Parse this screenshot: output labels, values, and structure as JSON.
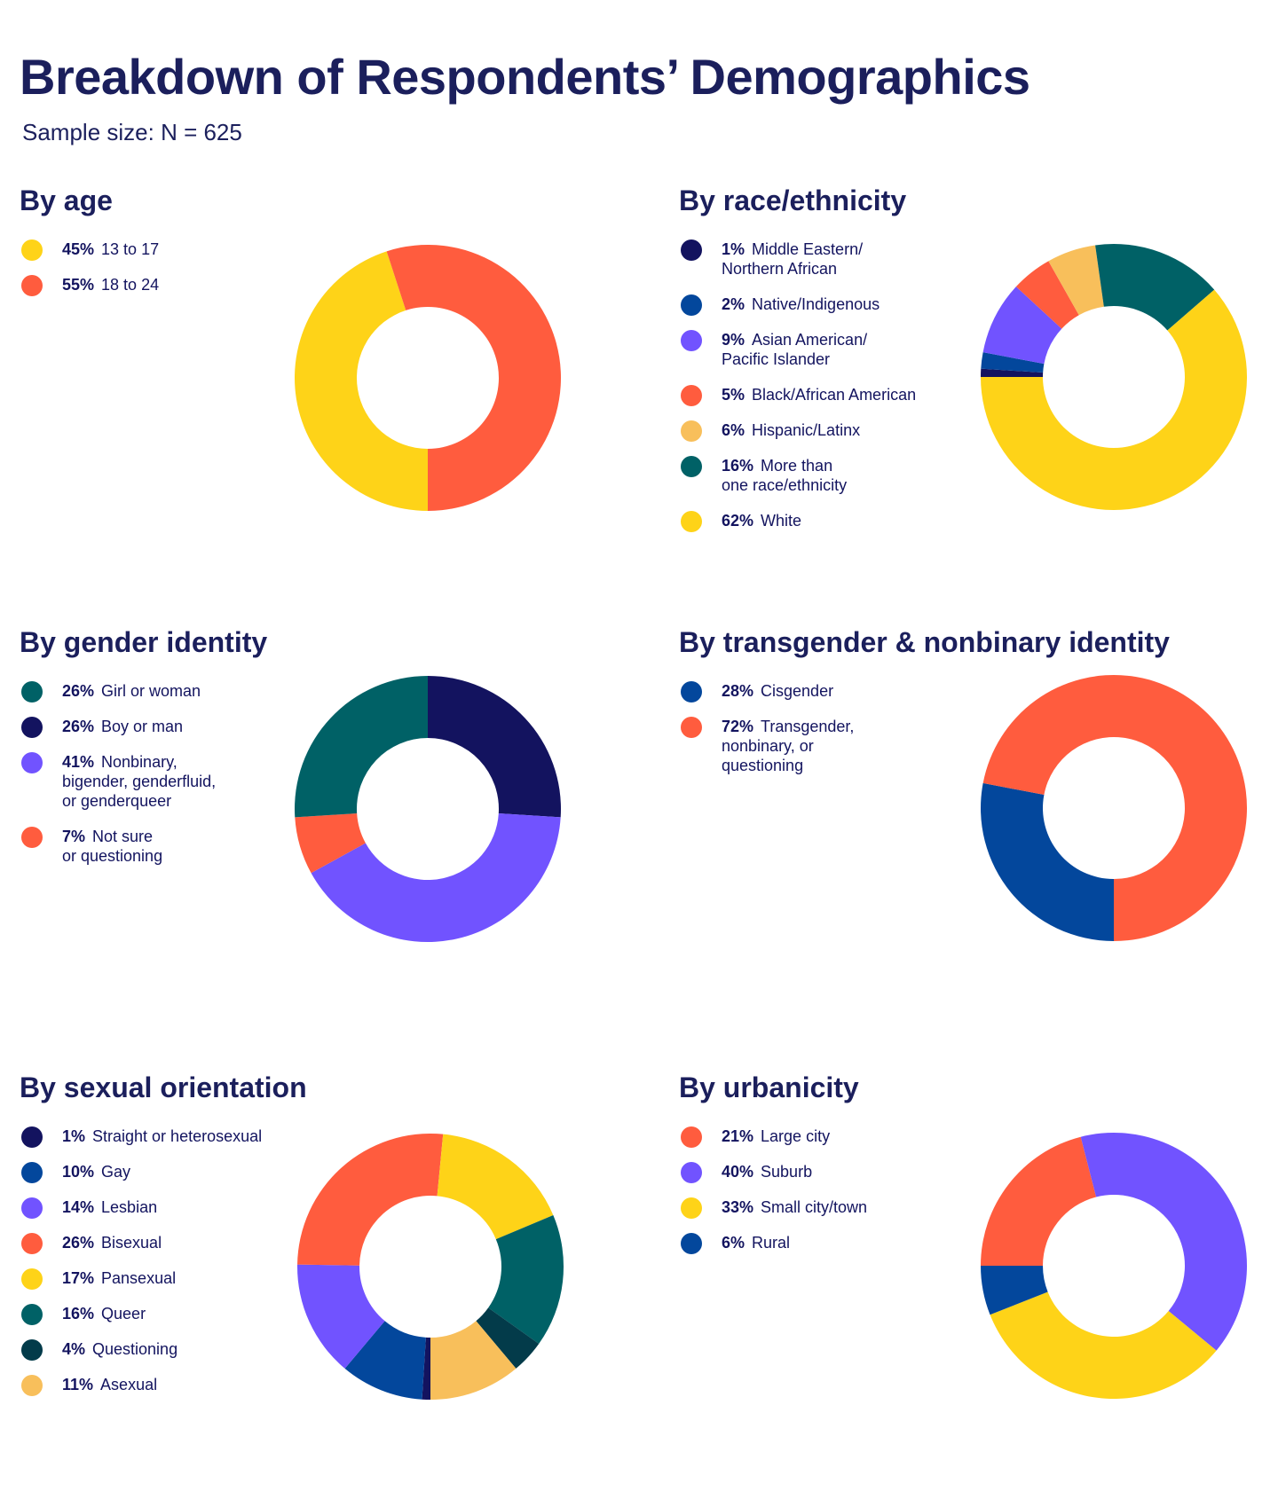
{
  "title": "Breakdown of Respondents’ Demographics",
  "subtitle": "Sample size: N = 625",
  "colors": {
    "yellow": "#fed318",
    "red": "#ff5c3e",
    "navy": "#13135f",
    "blue": "#03479c",
    "purple": "#7153ff",
    "teal": "#006166",
    "light_orange": "#f8bf5b",
    "dark_teal": "#033b4a"
  },
  "chart_data": [
    {
      "type": "pie",
      "donut": true,
      "title": "By age",
      "start_direction": "bottom",
      "clockwise": true,
      "categories": [
        "13 to 17",
        "18 to 24"
      ],
      "legend_pct": [
        "45%",
        "55%"
      ],
      "values": [
        45,
        55
      ],
      "slice_colors": [
        "#fed318",
        "#ff5c3e"
      ]
    },
    {
      "type": "pie",
      "donut": true,
      "title": "By race/ethnicity",
      "start_direction": "left",
      "clockwise": true,
      "categories": [
        "Middle Eastern/\nNorthern African",
        "Native/Indigenous",
        "Asian American/\nPacific Islander",
        "Black/African American",
        "Hispanic/Latinx",
        "More than\none race/ethnicity",
        "White"
      ],
      "legend_pct": [
        "1%",
        "2%",
        "9%",
        "5%",
        "6%",
        "16%",
        "62%"
      ],
      "values": [
        1,
        2,
        9,
        5,
        6,
        16,
        62
      ],
      "slice_colors": [
        "#13135f",
        "#03479c",
        "#7153ff",
        "#ff5c3e",
        "#f8bf5b",
        "#006166",
        "#fed318"
      ]
    },
    {
      "type": "pie",
      "donut": true,
      "title": "By gender identity",
      "start_direction": "top",
      "clockwise": true,
      "categories": [
        "Boy or man",
        "Nonbinary,\nbigender, genderfluid,\nor genderqueer",
        "Not sure\nor questioning",
        "Girl or woman"
      ],
      "legend_order": [
        3,
        0,
        1,
        2
      ],
      "legend_pct": [
        "26%",
        "41%",
        "7%",
        "26%"
      ],
      "values": [
        26,
        41,
        7,
        26
      ],
      "slice_colors": [
        "#13135f",
        "#7153ff",
        "#ff5c3e",
        "#006166"
      ]
    },
    {
      "type": "pie",
      "donut": true,
      "title": "By transgender & nonbinary identity",
      "start_direction": "bottom",
      "clockwise": true,
      "categories": [
        "Cisgender",
        "Transgender,\nnonbinary, or\nquestioning"
      ],
      "legend_pct": [
        "28%",
        "72%"
      ],
      "values": [
        28,
        72
      ],
      "slice_colors": [
        "#03479c",
        "#ff5c3e"
      ]
    },
    {
      "type": "pie",
      "donut": true,
      "title": "By sexual orientation",
      "start_direction": "bottom",
      "clockwise": true,
      "categories": [
        "Straight or heterosexual",
        "Gay",
        "Lesbian",
        "Bisexual",
        "Pansexual",
        "Queer",
        "Questioning",
        "Asexual"
      ],
      "legend_pct": [
        "1%",
        "10%",
        "14%",
        "26%",
        "17%",
        "16%",
        "4%",
        "11%"
      ],
      "values": [
        1,
        10,
        14,
        26,
        17,
        16,
        4,
        11
      ],
      "slice_colors": [
        "#13135f",
        "#03479c",
        "#7153ff",
        "#ff5c3e",
        "#fed318",
        "#006166",
        "#033b4a",
        "#f8bf5b"
      ]
    },
    {
      "type": "pie",
      "donut": true,
      "title": "By urbanicity",
      "start_direction": "left",
      "clockwise": true,
      "categories": [
        "Large city",
        "Suburb",
        "Small city/town",
        "Rural"
      ],
      "legend_pct": [
        "21%",
        "40%",
        "33%",
        "6%"
      ],
      "values": [
        21,
        40,
        33,
        6
      ],
      "slice_colors": [
        "#ff5c3e",
        "#7153ff",
        "#fed318",
        "#03479c"
      ]
    }
  ]
}
